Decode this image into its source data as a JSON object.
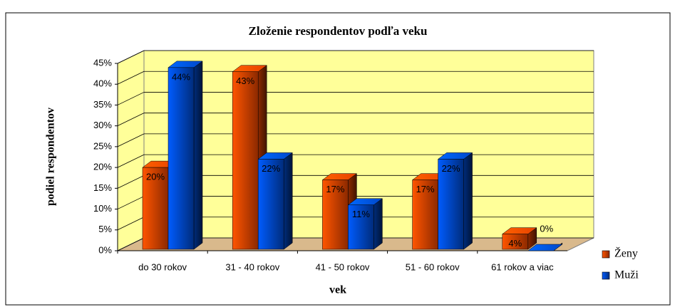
{
  "chart_data": {
    "type": "bar3d",
    "title": "Zloženie respondentov podľa veku",
    "x_label": "vek",
    "y_label": "podiel respondentov",
    "categories": [
      "do 30 rokov",
      "31 - 40 rokov",
      "41 - 50 rokov",
      "51 - 60 rokov",
      "61 rokov a viac"
    ],
    "series": [
      {
        "name": "Ženy",
        "color": "#ff4a00",
        "values": [
          20,
          43,
          17,
          17,
          4
        ],
        "value_labels": [
          "20%",
          "43%",
          "17%",
          "17%",
          "4%"
        ]
      },
      {
        "name": "Muži",
        "color": "#0050e0",
        "values": [
          44,
          22,
          11,
          22,
          0
        ],
        "value_labels": [
          "44%",
          "22%",
          "11%",
          "22%",
          "0%"
        ]
      }
    ],
    "ylim": [
      0,
      45
    ],
    "yticks": [
      {
        "value": 0,
        "label": "0%"
      },
      {
        "value": 5,
        "label": "5%"
      },
      {
        "value": 10,
        "label": "10%"
      },
      {
        "value": 15,
        "label": "15%"
      },
      {
        "value": 20,
        "label": "20%"
      },
      {
        "value": 25,
        "label": "25%"
      },
      {
        "value": 30,
        "label": "30%"
      },
      {
        "value": 35,
        "label": "35%"
      },
      {
        "value": 40,
        "label": "40%"
      },
      {
        "value": 45,
        "label": "45%"
      }
    ],
    "grid": true,
    "legend": "right"
  }
}
